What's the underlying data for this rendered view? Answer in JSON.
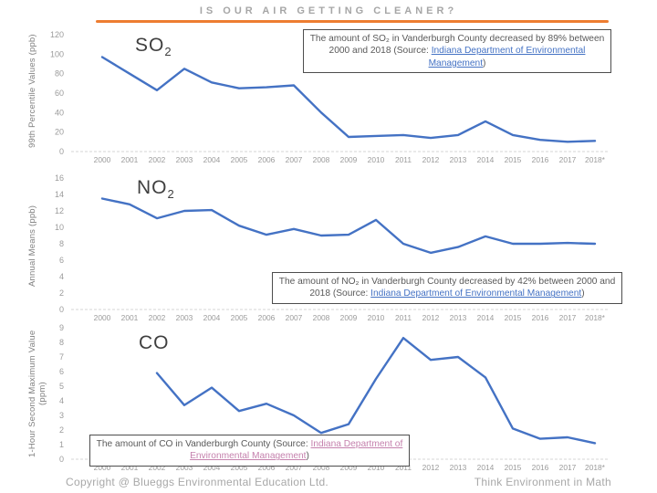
{
  "header": {
    "title": "IS OUR AIR GETTING CLEANER?",
    "rule_color": "#ED7D31"
  },
  "footer": {
    "copyright": "Copyright @ Blueggs Environmental Education Ltd.",
    "tagline": "Think Environment in Math"
  },
  "colors": {
    "line": "#4472C4",
    "axis": "#d6d6d6",
    "tick_text": "#9b9b9b"
  },
  "chart_data": [
    {
      "type": "line",
      "id": "so2",
      "pollutant": "SO",
      "pollutant_sub": "2",
      "ylabel": "99th Percentile Values (ppb)",
      "xlabel": "",
      "ylim": [
        0,
        120
      ],
      "ytick_step": 20,
      "grid": false,
      "line_color": "#4472C4",
      "x": [
        "2000",
        "2001",
        "2002",
        "2003",
        "2004",
        "2005",
        "2006",
        "2007",
        "2008",
        "2009",
        "2010",
        "2011",
        "2012",
        "2013",
        "2014",
        "2015",
        "2016",
        "2017",
        "2018*"
      ],
      "values": [
        97,
        80,
        63,
        85,
        71,
        65,
        66,
        68,
        40,
        15,
        16,
        17,
        14,
        17,
        31,
        17,
        12,
        10,
        11
      ],
      "annotation": {
        "before": "The amount of SO₂ in Vanderburgh County decreased by 89% between 2000 and 2018 (Source: ",
        "link": "Indiana Department of Environmental Management",
        "after": ")",
        "link_color": "#4472C4"
      }
    },
    {
      "type": "line",
      "id": "no2",
      "pollutant": "NO",
      "pollutant_sub": "2",
      "ylabel": "Annual Means (ppb)",
      "xlabel": "",
      "ylim": [
        0,
        16
      ],
      "ytick_step": 2,
      "grid": false,
      "line_color": "#4472C4",
      "x": [
        "2000",
        "2001",
        "2002",
        "2003",
        "2004",
        "2005",
        "2006",
        "2007",
        "2008",
        "2009",
        "2010",
        "2011",
        "2012",
        "2013",
        "2014",
        "2015",
        "2016",
        "2017",
        "2018*"
      ],
      "values": [
        13.5,
        12.8,
        11.1,
        12,
        12.1,
        10.2,
        9.1,
        9.8,
        9,
        9.1,
        10.9,
        8,
        6.9,
        7.6,
        8.9,
        8,
        8,
        8.1,
        8
      ],
      "annotation": {
        "before": "The amount of NO₂ in Vanderburgh County decreased by 42% between 2000 and 2018 (Source: ",
        "link": "Indiana Department of Environmental Management",
        "after": ")",
        "link_color": "#4472C4"
      }
    },
    {
      "type": "line",
      "id": "co",
      "pollutant": "CO",
      "pollutant_sub": "",
      "ylabel": "1-Hour Second Maximum Value (ppm)",
      "xlabel": "",
      "ylim": [
        0,
        9
      ],
      "ytick_step": 1,
      "grid": false,
      "line_color": "#4472C4",
      "x": [
        "2000",
        "2001",
        "2002",
        "2003",
        "2004",
        "2005",
        "2006",
        "2007",
        "2008",
        "2009",
        "2010",
        "2011",
        "2012",
        "2013",
        "2014",
        "2015",
        "2016",
        "2017",
        "2018*"
      ],
      "values": [
        null,
        null,
        5.9,
        3.7,
        4.9,
        3.3,
        3.8,
        3,
        1.8,
        2.4,
        5.5,
        8.3,
        6.8,
        7,
        5.6,
        2.1,
        1.4,
        1.5,
        1.1
      ],
      "annotation": {
        "before": "The amount of CO in Vanderburgh County (Source: ",
        "link": "Indiana Department of Environmental Management",
        "after": ")",
        "link_color": "#C581AD"
      }
    }
  ]
}
